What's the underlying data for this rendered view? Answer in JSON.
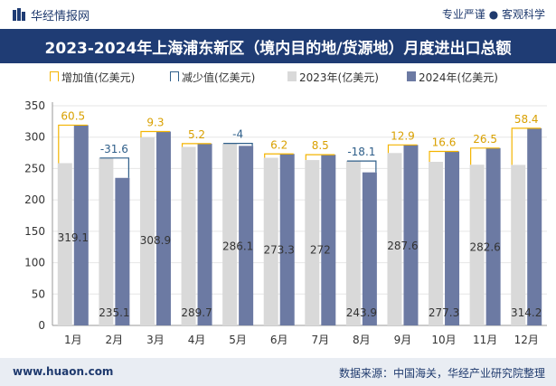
{
  "header": {
    "brand": "华经情报网",
    "tagline": "专业严谨 ● 客观科学",
    "title": "2023-2024年上海浦东新区（境内目的地/货源地）月度进出口总额"
  },
  "footer": {
    "site": "www.huaon.com",
    "source": "数据来源：中国海关，华经产业研究院整理"
  },
  "colors": {
    "increase": "#f4b400",
    "decrease": "#2f5f8a",
    "y2023": "#d9d9d9",
    "y2024": "#6c7aa3",
    "title_bg": "#1f3c74"
  },
  "chart_data": {
    "type": "bar",
    "categories": [
      "1月",
      "2月",
      "3月",
      "4月",
      "5月",
      "6月",
      "7月",
      "8月",
      "9月",
      "10月",
      "11月",
      "12月"
    ],
    "ylim": [
      0,
      350
    ],
    "yticks": [
      0,
      50,
      100,
      150,
      200,
      250,
      300,
      350
    ],
    "legend": [
      {
        "key": "increase",
        "label": "增加值(亿美元)"
      },
      {
        "key": "decrease",
        "label": "减少值(亿美元)"
      },
      {
        "key": "y2023",
        "label": "2023年(亿美元)"
      },
      {
        "key": "y2024",
        "label": "2024年(亿美元)"
      }
    ],
    "series": [
      {
        "name": "2023年(亿美元)",
        "values": [
          258.6,
          266.7,
          299.6,
          284.5,
          290.1,
          267.1,
          263.5,
          262.0,
          274.7,
          260.7,
          256.1,
          255.8
        ]
      },
      {
        "name": "2024年(亿美元)",
        "values": [
          319.1,
          235.1,
          308.9,
          289.7,
          286.1,
          273.3,
          272.0,
          243.9,
          287.6,
          277.3,
          282.6,
          314.2
        ]
      }
    ],
    "value_labels_2024": [
      "319.1",
      "235.1",
      "308.9",
      "289.7",
      "286.1",
      "273.3",
      "272",
      "243.9",
      "287.6",
      "277.3",
      "282.6",
      "314.2"
    ],
    "change": [
      60.5,
      -31.6,
      9.3,
      5.2,
      -4,
      6.2,
      8.5,
      -18.1,
      12.9,
      16.6,
      26.5,
      58.4
    ],
    "change_labels": [
      "60.5",
      "-31.6",
      "9.3",
      "5.2",
      "-4",
      "6.2",
      "8.5",
      "-18.1",
      "12.9",
      "16.6",
      "26.5",
      "58.4"
    ]
  }
}
